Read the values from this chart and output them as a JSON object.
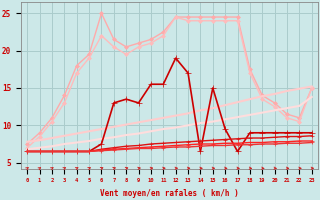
{
  "background_color": "#cce8e8",
  "grid_color": "#aacccc",
  "x_ticks": [
    0,
    1,
    2,
    3,
    4,
    5,
    6,
    7,
    8,
    9,
    10,
    11,
    12,
    13,
    14,
    15,
    16,
    17,
    18,
    19,
    20,
    21,
    22,
    23
  ],
  "xlabel": "Vent moyen/en rafales ( km/h )",
  "ylim": [
    4.2,
    26.5
  ],
  "yticks": [
    5,
    10,
    15,
    20,
    25
  ],
  "series": [
    {
      "color": "#ffaaaa",
      "linewidth": 1.0,
      "marker": "D",
      "markersize": 2.0,
      "y": [
        7.5,
        9.0,
        11.0,
        14.0,
        18.0,
        19.5,
        25.0,
        21.5,
        20.5,
        21.0,
        21.5,
        22.5,
        24.5,
        24.5,
        24.5,
        24.5,
        24.5,
        24.5,
        17.5,
        14.0,
        13.0,
        11.5,
        11.0,
        15.0
      ]
    },
    {
      "color": "#ffbbbb",
      "linewidth": 1.0,
      "marker": "D",
      "markersize": 2.0,
      "y": [
        7.0,
        8.5,
        10.5,
        13.0,
        17.0,
        19.0,
        22.0,
        20.5,
        19.5,
        20.5,
        21.0,
        22.0,
        24.5,
        24.0,
        24.0,
        24.0,
        24.0,
        24.0,
        17.0,
        13.5,
        12.5,
        11.0,
        10.5,
        15.0
      ]
    },
    {
      "color": "#ffcccc",
      "linewidth": 1.5,
      "marker": null,
      "markersize": 0,
      "y": [
        7.8,
        8.0,
        8.3,
        8.6,
        8.9,
        9.2,
        9.5,
        9.8,
        10.1,
        10.4,
        10.7,
        11.0,
        11.3,
        11.6,
        12.0,
        12.3,
        12.7,
        13.1,
        13.5,
        13.9,
        14.2,
        14.6,
        14.9,
        15.2
      ]
    },
    {
      "color": "#ffdddd",
      "linewidth": 1.5,
      "marker": null,
      "markersize": 0,
      "y": [
        6.8,
        7.0,
        7.2,
        7.5,
        7.7,
        7.9,
        8.2,
        8.4,
        8.7,
        8.9,
        9.2,
        9.5,
        9.7,
        10.0,
        10.3,
        10.5,
        10.8,
        11.1,
        11.4,
        11.7,
        12.0,
        12.3,
        12.6,
        13.8
      ]
    },
    {
      "color": "#cc0000",
      "linewidth": 1.2,
      "marker": "+",
      "markersize": 4,
      "y": [
        6.5,
        6.5,
        6.5,
        6.5,
        6.5,
        6.5,
        7.5,
        13.0,
        13.5,
        13.0,
        15.5,
        15.5,
        19.0,
        17.0,
        6.5,
        15.0,
        9.5,
        6.5,
        9.0,
        9.0,
        9.0,
        9.0,
        9.0,
        9.0
      ]
    },
    {
      "color": "#dd1111",
      "linewidth": 1.0,
      "marker": "+",
      "markersize": 3,
      "y": [
        6.5,
        6.5,
        6.5,
        6.5,
        6.5,
        6.5,
        6.8,
        7.0,
        7.2,
        7.3,
        7.5,
        7.6,
        7.7,
        7.8,
        7.9,
        8.0,
        8.1,
        8.2,
        8.3,
        8.3,
        8.4,
        8.5,
        8.5,
        8.6
      ]
    },
    {
      "color": "#ff2222",
      "linewidth": 1.0,
      "marker": "+",
      "markersize": 3,
      "y": [
        6.5,
        6.5,
        6.5,
        6.5,
        6.5,
        6.5,
        6.7,
        6.8,
        6.9,
        7.0,
        7.1,
        7.2,
        7.3,
        7.4,
        7.5,
        7.5,
        7.6,
        7.6,
        7.7,
        7.7,
        7.8,
        7.8,
        7.9,
        7.9
      ]
    },
    {
      "color": "#ee3333",
      "linewidth": 1.0,
      "marker": "+",
      "markersize": 3,
      "y": [
        6.5,
        6.5,
        6.5,
        6.5,
        6.5,
        6.5,
        6.6,
        6.7,
        6.8,
        6.9,
        6.9,
        7.0,
        7.1,
        7.1,
        7.2,
        7.3,
        7.3,
        7.4,
        7.4,
        7.5,
        7.5,
        7.6,
        7.6,
        7.7
      ]
    }
  ],
  "arrow_color": "#cc2222",
  "arrow_angles_deg": [
    45,
    45,
    42,
    40,
    38,
    35,
    30,
    25,
    20,
    15,
    10,
    5,
    3,
    2,
    0,
    0,
    355,
    353,
    352,
    350,
    352,
    355,
    358,
    0
  ]
}
